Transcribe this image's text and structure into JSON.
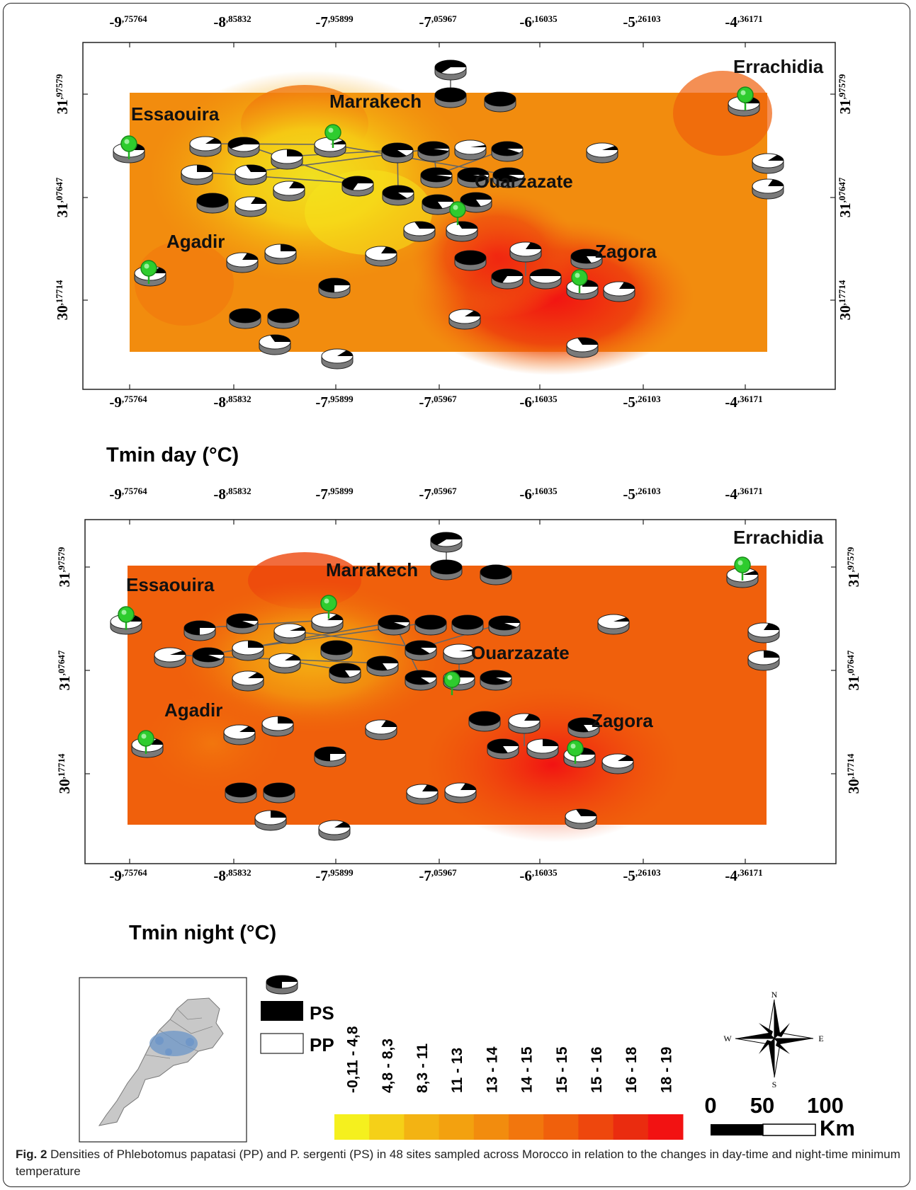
{
  "figure": {
    "caption_label": "Fig. 2",
    "caption_text": "Densities of Phlebotomus papatasi (PP) and P. sergenti (PS) in 48 sites sampled across Morocco in relation to the changes in day-time and night-time minimum temperature"
  },
  "axes": {
    "lon_major": [
      "-9",
      "-8",
      "-7",
      "-7",
      "-6",
      "-5",
      "-4"
    ],
    "lon_minor": [
      "75764",
      "85832",
      "95899",
      "05967",
      "16035",
      "26103",
      "36171"
    ],
    "lat_major": [
      "31",
      "31",
      "30"
    ],
    "lat_minor": [
      "97579",
      "07647",
      "17714"
    ]
  },
  "maps": [
    {
      "id": "day",
      "title": "Tmin day (°C)"
    },
    {
      "id": "night",
      "title": "Tmin night (°C)"
    }
  ],
  "cities": [
    "Essaouira",
    "Marrakech",
    "Errachidia",
    "Ouarzazate",
    "Agadir",
    "Zagora"
  ],
  "legend": {
    "ps_label": "PS",
    "pp_label": "PP",
    "ps_color": "#000000",
    "pp_color": "#ffffff",
    "classes": [
      "-0,11 - 4,8",
      "4,8 - 8,3",
      "8,3 - 11",
      "11 - 13",
      "13 - 14",
      "14 - 15",
      "15 - 15",
      "15 - 16",
      "16 - 18",
      "18 - 19"
    ],
    "class_colors": [
      "#f5f01e",
      "#f5d018",
      "#f3b313",
      "#f3a10f",
      "#f28c0e",
      "#f2760d",
      "#f0600c",
      "#ee470d",
      "#ea2c0f",
      "#f21212"
    ]
  },
  "scale_bar": {
    "labels": [
      "0",
      "50",
      "100"
    ],
    "unit": "Km"
  },
  "compass": {
    "n": "N",
    "s": "S",
    "e": "E",
    "w": "W"
  },
  "inset": {
    "description_icon": "morocco-inset-map-icon"
  }
}
